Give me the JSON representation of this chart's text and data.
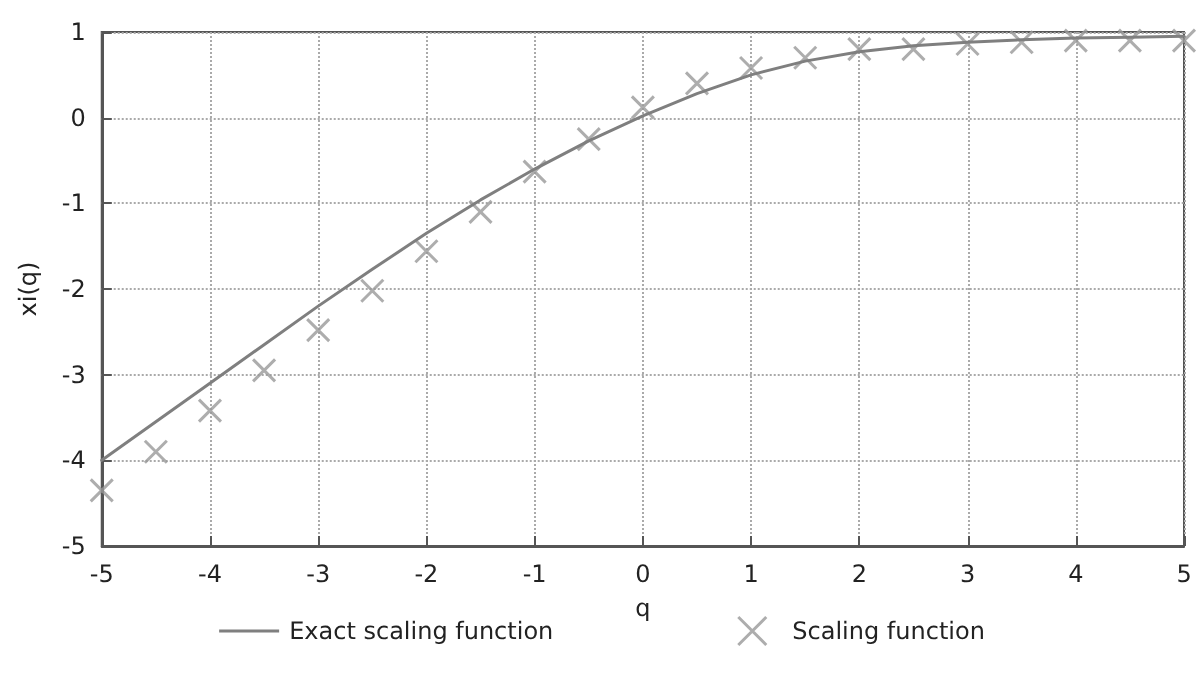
{
  "chart_data": {
    "type": "line",
    "xlabel": "q",
    "ylabel": "xi(q)",
    "xlim": [
      -5,
      5
    ],
    "xticks": [
      -5,
      -4,
      -3,
      -2,
      -1,
      0,
      1,
      2,
      3,
      4,
      5
    ],
    "ylim": [
      -5,
      1
    ],
    "yticks": [
      -5,
      -4,
      -3,
      -2,
      -1,
      0,
      1
    ],
    "grid": true,
    "legend": "bottom",
    "series": [
      {
        "name": "Exact scaling function",
        "color": "#7f7f7f",
        "marker": "none",
        "line_style": "solid",
        "x": [
          -5,
          -4.5,
          -4,
          -3.5,
          -3,
          -2.5,
          -2,
          -1.5,
          -1,
          -0.5,
          0,
          0.5,
          1,
          1.5,
          2,
          2.5,
          3,
          3.5,
          4,
          4.5,
          5
        ],
        "values": [
          -4,
          -3.55,
          -3.1,
          -2.65,
          -2.2,
          -1.77,
          -1.35,
          -0.96,
          -0.6,
          -0.27,
          0.02,
          0.28,
          0.5,
          0.66,
          0.77,
          0.84,
          0.88,
          0.91,
          0.93,
          0.94,
          0.95
        ]
      },
      {
        "name": "Scaling function",
        "type": "scatter",
        "color": "#999999",
        "marker": "cross",
        "x": [
          -5,
          -4.5,
          -4,
          -3.5,
          -3,
          -2.5,
          -2,
          -1.5,
          -1,
          -0.5,
          0,
          0.5,
          1,
          1.5,
          2,
          2.5,
          3,
          3.5,
          4,
          4.5,
          5
        ],
        "values": [
          -4.35,
          -3.9,
          -3.42,
          -2.95,
          -2.48,
          -2.02,
          -1.56,
          -1.1,
          -0.63,
          -0.25,
          0.12,
          0.4,
          0.58,
          0.7,
          0.8,
          0.8,
          0.86,
          0.88,
          0.9,
          0.9,
          0.9
        ]
      }
    ]
  }
}
